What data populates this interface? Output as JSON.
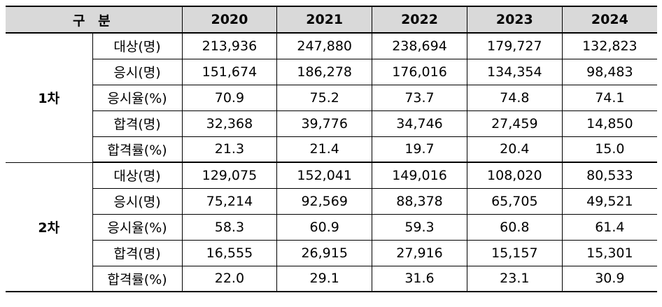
{
  "table": {
    "header": {
      "label": "구 분",
      "years": [
        "2020",
        "2021",
        "2022",
        "2023",
        "2024"
      ]
    },
    "groups": [
      {
        "name": "1차",
        "rows": [
          {
            "label": "대상(명)",
            "values": [
              "213,936",
              "247,880",
              "238,694",
              "179,727",
              "132,823"
            ]
          },
          {
            "label": "응시(명)",
            "values": [
              "151,674",
              "186,278",
              "176,016",
              "134,354",
              "98,483"
            ]
          },
          {
            "label": "응시율(%)",
            "values": [
              "70.9",
              "75.2",
              "73.7",
              "74.8",
              "74.1"
            ]
          },
          {
            "label": "합격(명)",
            "values": [
              "32,368",
              "39,776",
              "34,746",
              "27,459",
              "14,850"
            ]
          },
          {
            "label": "합격률(%)",
            "values": [
              "21.3",
              "21.4",
              "19.7",
              "20.4",
              "15.0"
            ]
          }
        ]
      },
      {
        "name": "2차",
        "rows": [
          {
            "label": "대상(명)",
            "values": [
              "129,075",
              "152,041",
              "149,016",
              "108,020",
              "80,533"
            ]
          },
          {
            "label": "응시(명)",
            "values": [
              "75,214",
              "92,569",
              "88,378",
              "65,705",
              "49,521"
            ]
          },
          {
            "label": "응시율(%)",
            "values": [
              "58.3",
              "60.9",
              "59.3",
              "60.8",
              "61.4"
            ]
          },
          {
            "label": "합격(명)",
            "values": [
              "16,555",
              "26,915",
              "27,916",
              "15,157",
              "15,301"
            ]
          },
          {
            "label": "합격률(%)",
            "values": [
              "22.0",
              "29.1",
              "31.6",
              "23.1",
              "30.9"
            ]
          }
        ]
      }
    ]
  }
}
